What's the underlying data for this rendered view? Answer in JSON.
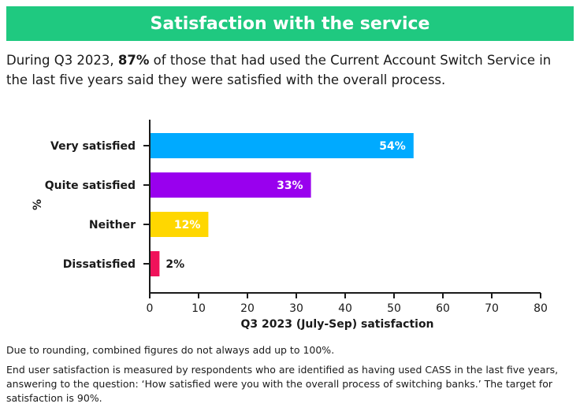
{
  "header": {
    "title": "Satisfaction with the service"
  },
  "intro": {
    "before": "During Q3 2023, ",
    "highlight": "87%",
    "after": " of those that had used the Current Account Switch Service in the last five years said they were satisfied with the overall process."
  },
  "chart_data": {
    "type": "bar",
    "orientation": "horizontal",
    "categories": [
      "Very satisfied",
      "Quite satisfied",
      "Neither",
      "Dissatisfied"
    ],
    "values": [
      54,
      33,
      12,
      2
    ],
    "value_labels": [
      "54%",
      "33%",
      "12%",
      "2%"
    ],
    "colors": [
      "#00aaff",
      "#9900ee",
      "#ffd700",
      "#f0125a"
    ],
    "xlabel": "Q3 2023 (July-Sep) satisfaction",
    "ylabel": "%",
    "xlim": [
      0,
      80
    ],
    "xticks": [
      0,
      10,
      20,
      30,
      40,
      50,
      60,
      70,
      80
    ],
    "grid": false,
    "legend": "none"
  },
  "notes": [
    "Due to rounding, combined figures do not always add up to 100%.",
    "End user satisfaction is measured by respondents who are identified as having used CASS in the last five years, answering to the question: ‘How satisfied were you with the overall process of switching banks.’ The target for satisfaction is 90%."
  ]
}
